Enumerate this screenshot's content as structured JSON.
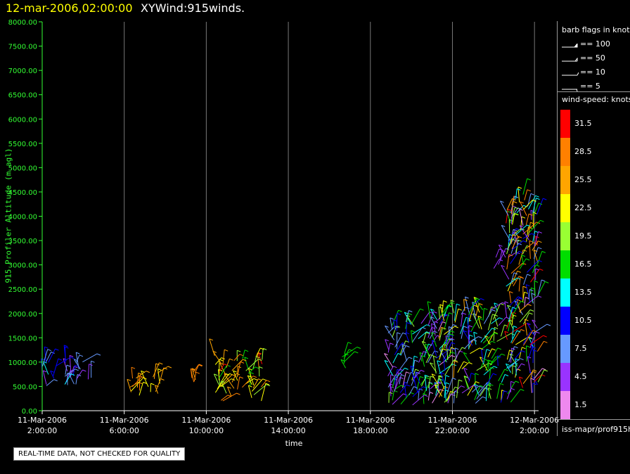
{
  "header": {
    "time": "12-mar-2006,02:00:00",
    "name": "XYWind:915winds."
  },
  "legend": {
    "barb_title": "barb flags in knots",
    "barb_flags": [
      {
        "label": "== 100"
      },
      {
        "label": "== 50"
      },
      {
        "label": "== 10"
      },
      {
        "label": "== 5"
      }
    ],
    "speed_title": "wind-speed: knots",
    "colors": [
      {
        "label": "31.5",
        "color": "#ff0000"
      },
      {
        "label": "28.5",
        "color": "#ff8000"
      },
      {
        "label": "25.5",
        "color": "#ffa500"
      },
      {
        "label": "22.5",
        "color": "#ffff00"
      },
      {
        "label": "19.5",
        "color": "#99ff33"
      },
      {
        "label": "16.5",
        "color": "#00dd00"
      },
      {
        "label": "13.5",
        "color": "#00ffff"
      },
      {
        "label": "10.5",
        "color": "#0000ff"
      },
      {
        "label": "7.5",
        "color": "#6699ff"
      },
      {
        "label": "4.5",
        "color": "#9933ff"
      },
      {
        "label": "1.5",
        "color": "#ee88ee"
      }
    ],
    "source": "iss-mapr/prof915h"
  },
  "footer": {
    "qc_note": "REAL-TIME DATA, NOT CHECKED FOR QUALITY"
  },
  "chart_data": {
    "type": "scatter",
    "title": "XYWind:915winds.",
    "xlabel": "time",
    "ylabel": "915 Profiler Altitude (m agl)",
    "ylim": [
      0,
      8000
    ],
    "yticks": [
      "0.00",
      "500.00",
      "1000.00",
      "1500.00",
      "2000.00",
      "2500.00",
      "3000.00",
      "3500.00",
      "4000.00",
      "4500.00",
      "5000.00",
      "5500.00",
      "6000.00",
      "6500.00",
      "7000.00",
      "7500.00",
      "8000.00"
    ],
    "xticks": [
      {
        "date": "11-Mar-2006",
        "time": "2:00:00"
      },
      {
        "date": "11-Mar-2006",
        "time": "6:00:00"
      },
      {
        "date": "11-Mar-2006",
        "time": "10:00:00"
      },
      {
        "date": "11-Mar-2006",
        "time": "14:00:00"
      },
      {
        "date": "11-Mar-2006",
        "time": "18:00:00"
      },
      {
        "date": "11-Mar-2006",
        "time": "22:00:00"
      },
      {
        "date": "12-Mar-2006",
        "time": "2:00:00"
      }
    ],
    "xrange_hours": [
      0,
      24.2
    ],
    "vertical_grid": true,
    "series": [
      {
        "x_hours": [
          0,
          2.5
        ],
        "alt_m": [
          500,
          1050
        ],
        "speed_kt": [
          4,
          13
        ]
      },
      {
        "x_hours": [
          4.2,
          5.8
        ],
        "alt_m": [
          300,
          800
        ],
        "speed_kt": [
          22,
          30
        ]
      },
      {
        "x_hours": [
          7.3,
          7.5
        ],
        "alt_m": [
          550,
          800
        ],
        "speed_kt": [
          26,
          29
        ]
      },
      {
        "x_hours": [
          8.4,
          10.8
        ],
        "alt_m": [
          200,
          1150
        ],
        "speed_kt": [
          17,
          31
        ]
      },
      {
        "x_hours": [
          14.6,
          14.8
        ],
        "alt_m": [
          850,
          1200
        ],
        "speed_kt": [
          16,
          17
        ]
      },
      {
        "x_hours": [
          16.8,
          19.4
        ],
        "alt_m": [
          100,
          1900
        ],
        "speed_kt": [
          2,
          20
        ]
      },
      {
        "x_hours": [
          19.2,
          22.4
        ],
        "alt_m": [
          150,
          2100
        ],
        "speed_kt": [
          4,
          25
        ]
      },
      {
        "x_hours": [
          22,
          22.8
        ],
        "alt_m": [
          2900,
          3250
        ],
        "speed_kt": [
          3,
          8
        ]
      },
      {
        "x_hours": [
          22.6,
          24.2
        ],
        "alt_m": [
          150,
          4450
        ],
        "speed_kt": [
          2,
          32
        ]
      }
    ]
  }
}
